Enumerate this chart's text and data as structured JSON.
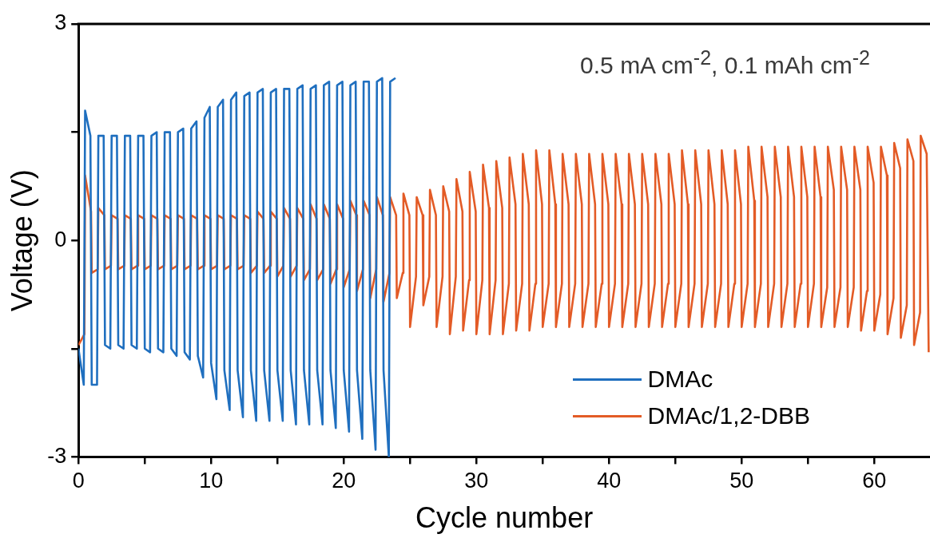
{
  "chart_data": {
    "type": "line",
    "xlabel": "Cycle number",
    "ylabel": "Voltage (V)",
    "annotations": [
      "0.5 mA cm$^{-2}$, 0.1 mAh cm$^{-2}$"
    ],
    "xlim": [
      0,
      64.2
    ],
    "xticks": [
      0,
      {
        "value": 5,
        "label": null
      },
      10,
      {
        "value": 15,
        "label": null
      },
      20,
      {
        "value": 25,
        "label": null
      },
      30,
      {
        "value": 35,
        "label": null
      },
      40,
      {
        "value": 45,
        "label": null
      },
      50,
      {
        "value": 55,
        "label": null
      },
      60
    ],
    "ylim": [
      -3,
      3
    ],
    "yticks": [
      -3,
      {
        "value": -1.5,
        "label": null
      },
      0,
      {
        "value": 1.5,
        "label": null
      },
      3
    ],
    "legend": "bottom right",
    "marker": "none",
    "line_style": "solid",
    "series": [
      {
        "name": "DMAc",
        "color": "#1f6fbf",
        "x": [
          0,
          0.4,
          0.5,
          0.9,
          1,
          1.4,
          1.5,
          1.9,
          2,
          2.4,
          2.5,
          2.9,
          3,
          3.4,
          3.5,
          3.9,
          4,
          4.4,
          4.5,
          4.9,
          5,
          5.4,
          5.5,
          5.9,
          6,
          6.4,
          6.5,
          6.9,
          7,
          7.4,
          7.5,
          7.9,
          8,
          8.4,
          8.5,
          8.9,
          9,
          9.4,
          9.5,
          9.9,
          10,
          10.4,
          10.5,
          10.9,
          11,
          11.4,
          11.5,
          11.9,
          12,
          12.4,
          12.5,
          12.9,
          13,
          13.4,
          13.5,
          13.9,
          14,
          14.4,
          14.5,
          14.9,
          15,
          15.4,
          15.5,
          15.9,
          16,
          16.4,
          16.5,
          16.9,
          17,
          17.4,
          17.5,
          17.9,
          18,
          18.4,
          18.5,
          18.9,
          19,
          19.4,
          19.5,
          19.9,
          20,
          20.4,
          20.5,
          20.9,
          21,
          21.4,
          21.5,
          21.9,
          22,
          22.4,
          22.5,
          22.9,
          23,
          23.4,
          23.5,
          23.9
        ],
        "values": [
          -1.5,
          -2.0,
          1.8,
          1.45,
          -2.0,
          -2.0,
          1.45,
          1.45,
          -1.45,
          -1.5,
          1.45,
          1.45,
          -1.45,
          -1.5,
          1.45,
          1.45,
          -1.45,
          -1.5,
          1.45,
          1.45,
          -1.5,
          -1.55,
          1.45,
          1.5,
          -1.5,
          -1.55,
          1.5,
          1.5,
          -1.5,
          -1.6,
          1.5,
          1.55,
          -1.55,
          -1.65,
          1.55,
          1.65,
          -1.6,
          -1.9,
          1.7,
          1.85,
          -1.7,
          -2.2,
          1.85,
          1.95,
          -1.8,
          -2.35,
          1.95,
          2.05,
          -1.8,
          -2.45,
          2.0,
          2.05,
          -1.8,
          -2.5,
          2.05,
          2.1,
          -1.8,
          -2.5,
          2.05,
          2.1,
          -1.8,
          -2.5,
          2.1,
          2.1,
          -1.8,
          -2.55,
          2.1,
          2.15,
          -1.8,
          -2.55,
          2.1,
          2.15,
          -1.8,
          -2.55,
          2.15,
          2.2,
          -1.8,
          -2.6,
          2.15,
          2.2,
          -1.8,
          -2.65,
          2.15,
          2.2,
          -1.8,
          -2.75,
          2.2,
          2.2,
          -1.8,
          -2.9,
          2.2,
          2.25,
          -1.8,
          -3.0,
          2.2,
          2.25
        ]
      },
      {
        "name": "DMAc/1,2-DBB",
        "color": "#e35b26",
        "x": [
          0,
          0.45,
          0.5,
          0.95,
          1,
          1.45,
          1.5,
          1.95,
          2,
          2.45,
          2.5,
          2.95,
          3,
          3.45,
          3.5,
          3.95,
          4,
          4.45,
          4.5,
          4.95,
          5,
          5.45,
          5.5,
          5.95,
          6,
          6.45,
          6.5,
          6.95,
          7,
          7.45,
          7.5,
          7.95,
          8,
          8.45,
          8.5,
          8.95,
          9,
          9.45,
          9.5,
          9.95,
          10,
          10.45,
          10.5,
          10.95,
          11,
          11.45,
          11.5,
          11.95,
          12,
          12.45,
          12.5,
          12.95,
          13,
          13.45,
          13.5,
          13.95,
          14,
          14.45,
          14.5,
          14.95,
          15,
          15.45,
          15.5,
          15.95,
          16,
          16.45,
          16.5,
          16.95,
          17,
          17.45,
          17.5,
          17.95,
          18,
          18.45,
          18.5,
          18.95,
          19,
          19.45,
          19.5,
          19.95,
          20,
          20.45,
          20.5,
          20.95,
          21,
          21.45,
          21.5,
          21.95,
          22,
          22.45,
          22.5,
          22.95,
          23,
          23.45,
          23.5,
          23.95,
          24,
          24.45,
          24.5,
          24.95,
          25,
          25.45,
          25.5,
          25.95,
          26,
          26.45,
          26.5,
          26.95,
          27,
          27.45,
          27.5,
          27.95,
          28,
          28.45,
          28.5,
          28.95,
          29,
          29.45,
          29.5,
          29.95,
          30,
          30.45,
          30.5,
          30.95,
          31,
          31.45,
          31.5,
          31.95,
          32,
          32.45,
          32.5,
          32.95,
          33,
          33.45,
          33.5,
          33.95,
          34,
          34.45,
          34.5,
          34.95,
          35,
          35.45,
          35.5,
          35.95,
          36,
          36.45,
          36.5,
          36.95,
          37,
          37.45,
          37.5,
          37.95,
          38,
          38.45,
          38.5,
          38.95,
          39,
          39.45,
          39.5,
          39.95,
          40,
          40.45,
          40.5,
          40.95,
          41,
          41.45,
          41.5,
          41.95,
          42,
          42.45,
          42.5,
          42.95,
          43,
          43.45,
          43.5,
          43.95,
          44,
          44.45,
          44.5,
          44.95,
          45,
          45.45,
          45.5,
          45.95,
          46,
          46.45,
          46.5,
          46.95,
          47,
          47.45,
          47.5,
          47.95,
          48,
          48.45,
          48.5,
          48.95,
          49,
          49.45,
          49.5,
          49.95,
          50,
          50.45,
          50.5,
          50.95,
          51,
          51.45,
          51.5,
          51.95,
          52,
          52.45,
          52.5,
          52.95,
          53,
          53.45,
          53.5,
          53.95,
          54,
          54.45,
          54.5,
          54.95,
          55,
          55.45,
          55.5,
          55.95,
          56,
          56.45,
          56.5,
          56.95,
          57,
          57.45,
          57.5,
          57.95,
          58,
          58.45,
          58.5,
          58.95,
          59,
          59.45,
          59.5,
          59.95,
          60,
          60.45,
          60.5,
          60.95,
          61,
          61.45,
          61.5,
          61.95,
          62,
          62.45,
          62.5,
          62.95,
          63,
          63.45,
          63.5,
          63.95,
          64.1
        ],
        "values": [
          -1.45,
          -1.3,
          0.9,
          0.4,
          -0.45,
          -0.4,
          0.45,
          0.35,
          -0.4,
          -0.35,
          0.35,
          0.3,
          -0.4,
          -0.35,
          0.35,
          0.3,
          -0.4,
          -0.35,
          0.35,
          0.3,
          -0.4,
          -0.35,
          0.35,
          0.3,
          -0.4,
          -0.35,
          0.35,
          0.3,
          -0.4,
          -0.35,
          0.35,
          0.3,
          -0.4,
          -0.35,
          0.35,
          0.3,
          -0.4,
          -0.35,
          0.35,
          0.3,
          -0.4,
          -0.35,
          0.35,
          0.3,
          -0.4,
          -0.35,
          0.35,
          0.3,
          -0.4,
          -0.35,
          0.35,
          0.3,
          -0.45,
          -0.35,
          0.4,
          0.3,
          -0.45,
          -0.35,
          0.4,
          0.3,
          -0.5,
          -0.35,
          0.45,
          0.3,
          -0.5,
          -0.35,
          0.45,
          0.3,
          -0.55,
          -0.4,
          0.5,
          0.3,
          -0.55,
          -0.4,
          0.5,
          0.3,
          -0.6,
          -0.4,
          0.5,
          0.3,
          -0.65,
          -0.4,
          0.55,
          0.35,
          -0.7,
          -0.4,
          0.55,
          0.35,
          -0.8,
          -0.4,
          0.6,
          0.35,
          -0.85,
          -0.45,
          0.6,
          0.35,
          -0.8,
          -0.45,
          0.65,
          0.35,
          -1.2,
          -0.5,
          0.6,
          0.35,
          -0.9,
          -0.5,
          0.7,
          0.35,
          -1.2,
          -0.5,
          0.75,
          0.4,
          -1.3,
          -0.5,
          0.85,
          0.4,
          -1.25,
          -0.55,
          0.95,
          0.4,
          -1.3,
          -0.55,
          1.05,
          0.45,
          -1.3,
          -0.55,
          1.1,
          0.45,
          -1.3,
          -0.6,
          1.15,
          0.5,
          -1.25,
          -0.6,
          1.2,
          0.5,
          -1.25,
          -0.6,
          1.25,
          0.5,
          -1.2,
          -0.6,
          1.25,
          0.5,
          -1.2,
          -0.6,
          1.2,
          0.5,
          -1.2,
          -0.6,
          1.2,
          0.5,
          -1.2,
          -0.6,
          1.2,
          0.5,
          -1.2,
          -0.6,
          1.2,
          0.5,
          -1.2,
          -0.6,
          1.2,
          0.5,
          -1.2,
          -0.6,
          1.2,
          0.5,
          -1.2,
          -0.6,
          1.2,
          0.5,
          -1.2,
          -0.6,
          1.2,
          0.5,
          -1.2,
          -0.6,
          1.2,
          0.5,
          -1.2,
          -0.6,
          1.25,
          0.5,
          -1.2,
          -0.6,
          1.25,
          0.5,
          -1.2,
          -0.6,
          1.25,
          0.5,
          -1.2,
          -0.6,
          1.25,
          0.5,
          -1.2,
          -0.6,
          1.25,
          0.5,
          -1.2,
          -0.6,
          1.3,
          0.55,
          -1.2,
          -0.6,
          1.3,
          0.6,
          -1.2,
          -0.6,
          1.3,
          0.6,
          -1.2,
          -0.6,
          1.3,
          0.6,
          -1.2,
          -0.6,
          1.3,
          0.6,
          -1.2,
          -0.6,
          1.3,
          0.6,
          -1.2,
          -0.65,
          1.3,
          0.7,
          -1.2,
          -0.65,
          1.3,
          0.7,
          -1.2,
          -0.65,
          1.3,
          0.7,
          -1.25,
          -0.7,
          1.3,
          0.8,
          -1.25,
          -0.75,
          1.3,
          0.9,
          -1.3,
          -0.8,
          1.35,
          1.0,
          -1.35,
          -0.9,
          1.4,
          1.1,
          -1.45,
          -1.0,
          1.45,
          1.2,
          -1.55
        ]
      }
    ]
  }
}
